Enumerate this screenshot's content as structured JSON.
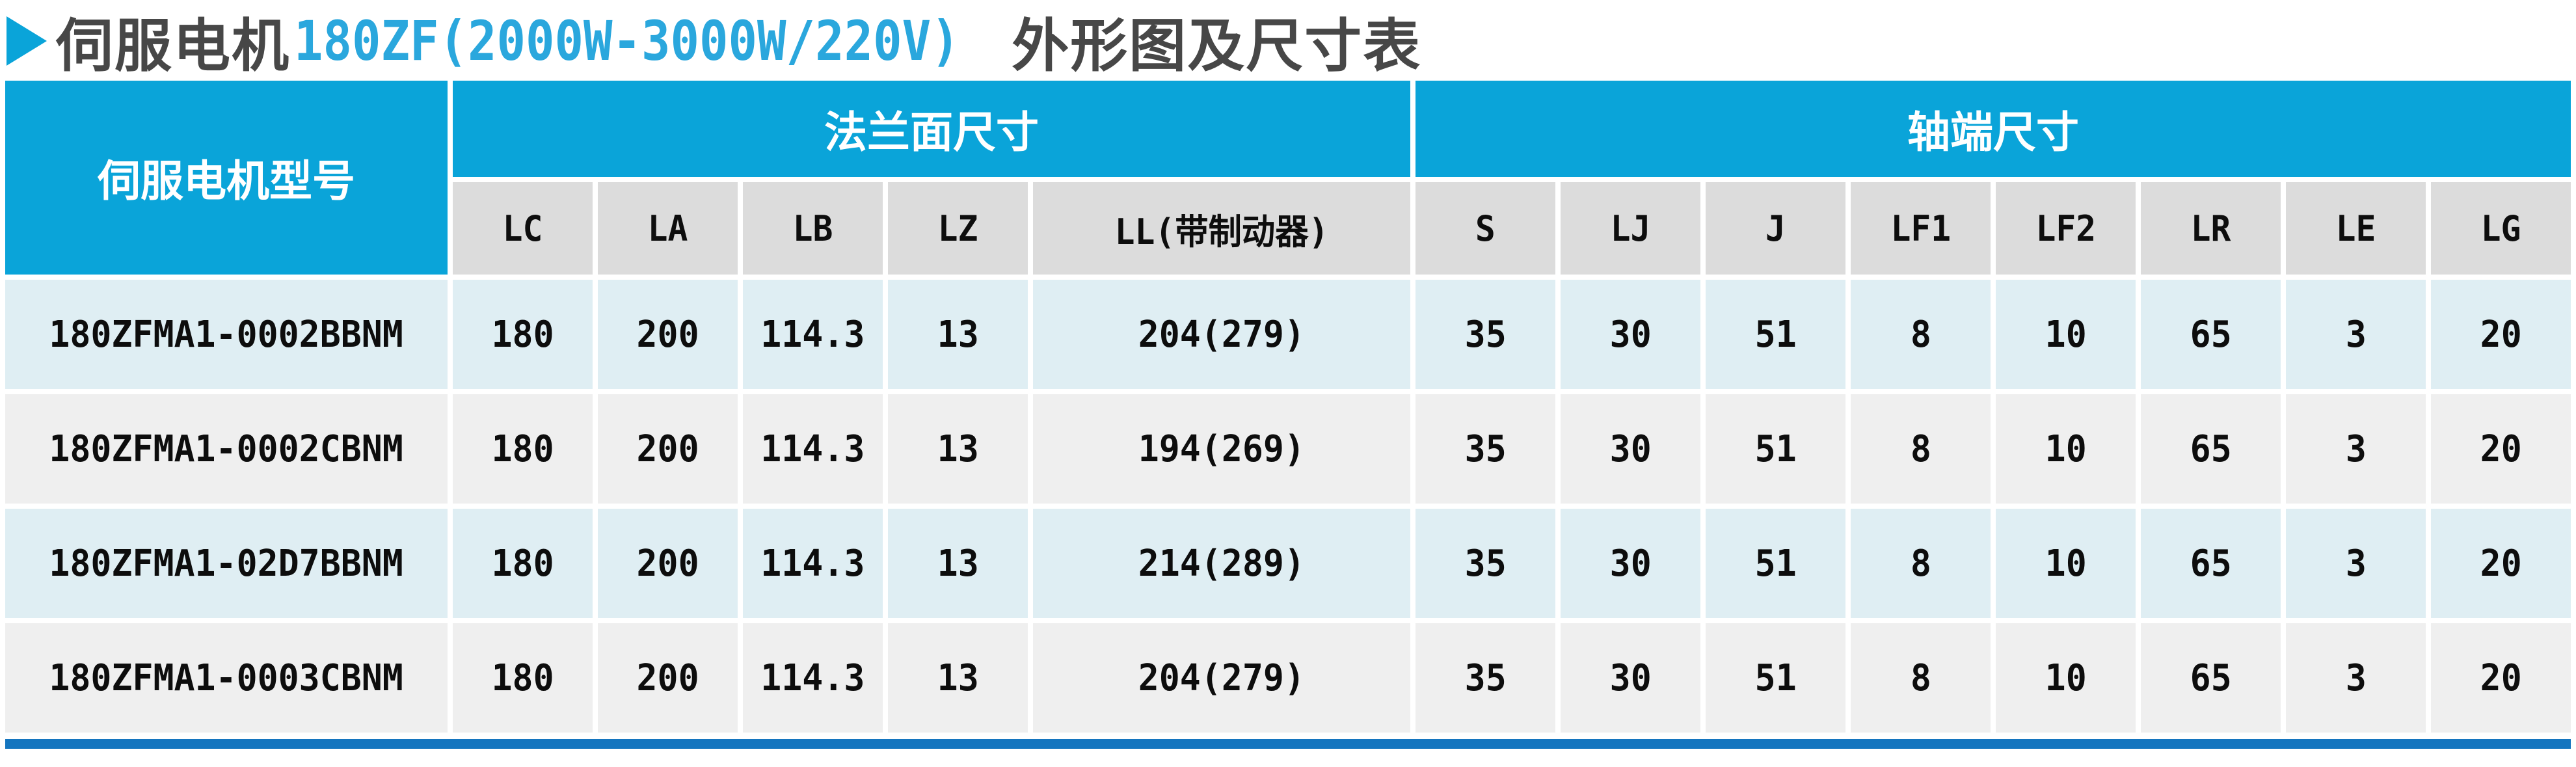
{
  "title": {
    "part_dark_1": "伺服电机",
    "part_blue": "180ZF(2000W-3000W/220V)",
    "part_dark_2": "外形图及尺寸表"
  },
  "colors": {
    "header_blue": "#0aa4d9",
    "title_blue": "#2aa7dd",
    "title_dark": "#474747",
    "subheader_gray": "#dcdcdc",
    "row_light_blue": "#dfeef3",
    "row_light_gray": "#efefef",
    "bottom_bar_blue": "#1475bf"
  },
  "table": {
    "model_header": "伺服电机型号",
    "groups": [
      {
        "label": "法兰面尺寸"
      },
      {
        "label": "轴端尺寸"
      }
    ],
    "columns": [
      "LC",
      "LA",
      "LB",
      "LZ",
      "LL(带制动器)",
      "S",
      "LJ",
      "J",
      "LF1",
      "LF2",
      "LR",
      "LE",
      "LG"
    ],
    "rows": [
      {
        "model": "180ZFMA1-0002BBNM",
        "values": [
          "180",
          "200",
          "114.3",
          "13",
          "204(279)",
          "35",
          "30",
          "51",
          "8",
          "10",
          "65",
          "3",
          "20"
        ]
      },
      {
        "model": "180ZFMA1-0002CBNM",
        "values": [
          "180",
          "200",
          "114.3",
          "13",
          "194(269)",
          "35",
          "30",
          "51",
          "8",
          "10",
          "65",
          "3",
          "20"
        ]
      },
      {
        "model": "180ZFMA1-02D7BBNM",
        "values": [
          "180",
          "200",
          "114.3",
          "13",
          "214(289)",
          "35",
          "30",
          "51",
          "8",
          "10",
          "65",
          "3",
          "20"
        ]
      },
      {
        "model": "180ZFMA1-0003CBNM",
        "values": [
          "180",
          "200",
          "114.3",
          "13",
          "204(279)",
          "35",
          "30",
          "51",
          "8",
          "10",
          "65",
          "3",
          "20"
        ]
      }
    ]
  }
}
